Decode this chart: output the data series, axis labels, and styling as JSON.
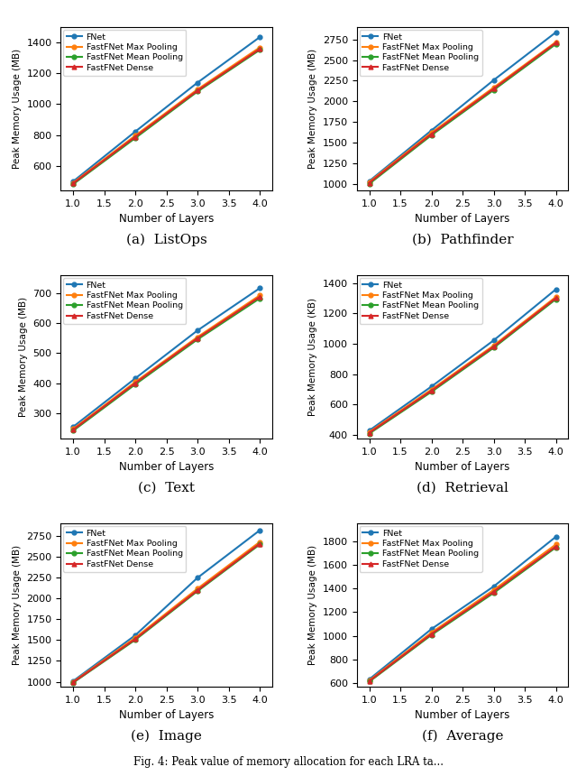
{
  "x": [
    1,
    2,
    3,
    4
  ],
  "subplots": [
    {
      "title": "(a)  ListOps",
      "ylabel": "Peak Memory Usage (MB)",
      "ylim": [
        440,
        1500
      ],
      "yticks": [
        600,
        800,
        1000,
        1200,
        1400
      ],
      "series": {
        "FNet": [
          498,
          822,
          1140,
          1435
        ],
        "FastFNet Max Pooling": [
          489,
          796,
          1096,
          1368
        ],
        "FastFNet Mean Pooling": [
          480,
          780,
          1082,
          1352
        ],
        "FastFNet Dense": [
          485,
          788,
          1088,
          1358
        ]
      }
    },
    {
      "title": "(b)  Pathfinder",
      "ylabel": "Peak Memory Usage (MB)",
      "ylim": [
        920,
        2900
      ],
      "yticks": [
        1000,
        1250,
        1500,
        1750,
        2000,
        2250,
        2500,
        2750
      ],
      "series": {
        "FNet": [
          1033,
          1648,
          2258,
          2838
        ],
        "FastFNet Max Pooling": [
          1022,
          1620,
          2168,
          2720
        ],
        "FastFNet Mean Pooling": [
          1000,
          1590,
          2138,
          2695
        ],
        "FastFNet Dense": [
          1012,
          1604,
          2152,
          2710
        ]
      }
    },
    {
      "title": "(c)  Text",
      "ylabel": "Peak Memory Usage (MB)",
      "ylim": [
        215,
        760
      ],
      "yticks": [
        300,
        400,
        500,
        600,
        700
      ],
      "series": {
        "FNet": [
          254,
          416,
          576,
          717
        ],
        "FastFNet Max Pooling": [
          247,
          404,
          554,
          693
        ],
        "FastFNet Mean Pooling": [
          241,
          396,
          546,
          683
        ],
        "FastFNet Dense": [
          244,
          400,
          550,
          688
        ]
      }
    },
    {
      "title": "(d)  Retrieval",
      "ylabel": "Peak Memory Usage (KB)",
      "ylim": [
        375,
        1450
      ],
      "yticks": [
        400,
        600,
        800,
        1000,
        1200,
        1400
      ],
      "series": {
        "FNet": [
          428,
          718,
          1022,
          1358
        ],
        "FastFNet Max Pooling": [
          418,
          698,
          988,
          1308
        ],
        "FastFNet Mean Pooling": [
          408,
          683,
          973,
          1293
        ],
        "FastFNet Dense": [
          413,
          690,
          980,
          1300
        ]
      }
    },
    {
      "title": "(e)  Image",
      "ylabel": "Peak Memory Usage (MB)",
      "ylim": [
        940,
        2900
      ],
      "yticks": [
        1000,
        1250,
        1500,
        1750,
        2000,
        2250,
        2500,
        2750
      ],
      "series": {
        "FNet": [
          1008,
          1558,
          2248,
          2818
        ],
        "FastFNet Max Pooling": [
          998,
          1528,
          2118,
          2678
        ],
        "FastFNet Mean Pooling": [
          988,
          1503,
          2088,
          2648
        ],
        "FastFNet Dense": [
          993,
          1513,
          2098,
          2658
        ]
      }
    },
    {
      "title": "(f)  Average",
      "ylabel": "Peak Memory Usage (MB)",
      "ylim": [
        570,
        1950
      ],
      "yticks": [
        600,
        800,
        1000,
        1200,
        1400,
        1600,
        1800
      ],
      "series": {
        "FNet": [
          633,
          1058,
          1418,
          1838
        ],
        "FastFNet Max Pooling": [
          623,
          1028,
          1388,
          1773
        ],
        "FastFNet Mean Pooling": [
          613,
          1008,
          1363,
          1748
        ],
        "FastFNet Dense": [
          618,
          1016,
          1373,
          1756
        ]
      }
    }
  ],
  "colors": {
    "FNet": "#1f77b4",
    "FastFNet Max Pooling": "#ff7f0e",
    "FastFNet Mean Pooling": "#2ca02c",
    "FastFNet Dense": "#d62728"
  },
  "markers": {
    "FNet": "o",
    "FastFNet Max Pooling": "o",
    "FastFNet Mean Pooling": "o",
    "FastFNet Dense": "^"
  },
  "xlabel": "Number of Layers",
  "xlim": [
    0.8,
    4.2
  ],
  "xticks": [
    1.0,
    1.5,
    2.0,
    2.5,
    3.0,
    3.5,
    4.0
  ],
  "legend_order": [
    "FNet",
    "FastFNet Max Pooling",
    "FastFNet Mean Pooling",
    "FastFNet Dense"
  ],
  "caption": "Fig. 4: Peak value of memory allocation for each LRA ta..."
}
